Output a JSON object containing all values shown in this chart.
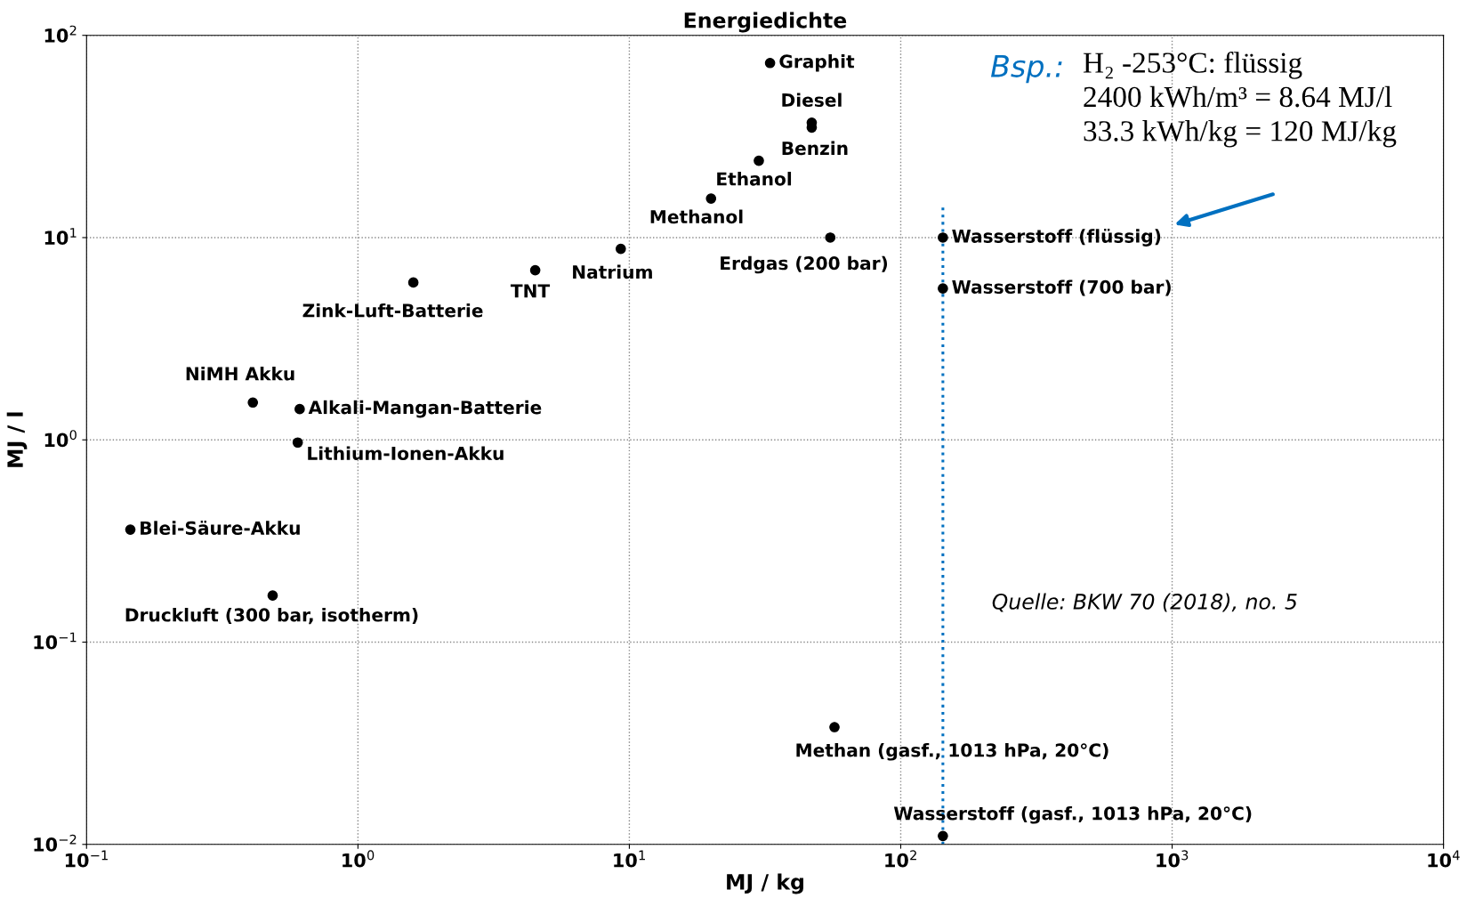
{
  "chart_data": {
    "type": "scatter",
    "title": "Energiedichte",
    "xlabel": "MJ / kg",
    "ylabel": "MJ / l",
    "log": "xy",
    "grid": true,
    "marker": "circle",
    "xlim": [
      0.1,
      10000
    ],
    "ylim": [
      0.01,
      100
    ],
    "xticks": [
      {
        "value": 0.1,
        "label": "10$^{−1}$"
      },
      {
        "value": 1,
        "label": "10$^{0}$"
      },
      {
        "value": 10,
        "label": "10$^{1}$"
      },
      {
        "value": 100,
        "label": "10$^{2}$"
      },
      {
        "value": 1000,
        "label": "10$^{3}$"
      },
      {
        "value": 10000,
        "label": "10$^{4}$"
      }
    ],
    "yticks": [
      {
        "value": 0.01,
        "label": "10$^{−2}$"
      },
      {
        "value": 0.1,
        "label": "10$^{−1}$"
      },
      {
        "value": 1,
        "label": "10$^{0}$"
      },
      {
        "value": 10,
        "label": "10$^{1}$"
      },
      {
        "value": 100,
        "label": "10$^{2}$"
      }
    ],
    "series": [
      {
        "color": "#000000",
        "x": [
          33,
          47,
          47,
          30,
          20,
          55,
          143,
          143,
          9.3,
          4.5,
          1.6,
          0.41,
          0.61,
          0.6,
          0.145,
          0.485,
          57,
          143
        ],
        "values": [
          73,
          37,
          35,
          24,
          15.6,
          10,
          10,
          5.6,
          8.8,
          6.9,
          6.0,
          1.53,
          1.42,
          0.97,
          0.36,
          0.17,
          0.038,
          0.011
        ]
      }
    ],
    "ref_lines": [
      {
        "axis": "x",
        "value": 143,
        "color": "#0070c0",
        "line_style": "dotted"
      }
    ],
    "annotations": [
      {
        "text": "Graphit",
        "x": 33,
        "y": 73
      },
      {
        "text": "Diesel",
        "x": 47,
        "y": 37
      },
      {
        "text": "Benzin",
        "x": 47,
        "y": 35
      },
      {
        "text": "Ethanol",
        "x": 30,
        "y": 24
      },
      {
        "text": "Methanol",
        "x": 20,
        "y": 15.6
      },
      {
        "text": "Erdgas (200 bar)",
        "x": 55,
        "y": 10
      },
      {
        "text": "Wasserstoff (flüssig)",
        "x": 143,
        "y": 10
      },
      {
        "text": "Wasserstoff (700 bar)",
        "x": 143,
        "y": 5.6
      },
      {
        "text": "Natrium",
        "x": 9.3,
        "y": 8.8
      },
      {
        "text": "TNT",
        "x": 4.5,
        "y": 6.9
      },
      {
        "text": "Zink-Luft-Batterie",
        "x": 1.6,
        "y": 6.0
      },
      {
        "text": "NiMH Akku",
        "x": 0.41,
        "y": 1.53
      },
      {
        "text": "Alkali-Mangan-Batterie",
        "x": 0.61,
        "y": 1.42
      },
      {
        "text": "Lithium-Ionen-Akku",
        "x": 0.6,
        "y": 0.97
      },
      {
        "text": "Blei-Säure-Akku",
        "x": 0.145,
        "y": 0.36
      },
      {
        "text": "Druckluft (300 bar, isotherm)",
        "x": 0.485,
        "y": 0.17
      },
      {
        "text": "Methan (gasf., 1013 hPa, 20°C)",
        "x": 57,
        "y": 0.038
      },
      {
        "text": "Wasserstoff (gasf., 1013 hPa, 20°C)",
        "x": 143,
        "y": 0.011
      },
      "Bsp.:",
      "H₂ -253°C: flüssig\n2400 kWh/m³ = 8.64 MJ/l\n33.3 kWh/kg = 120 MJ/kg",
      "Quelle: BKW 70 (2018), no. 5"
    ]
  }
}
